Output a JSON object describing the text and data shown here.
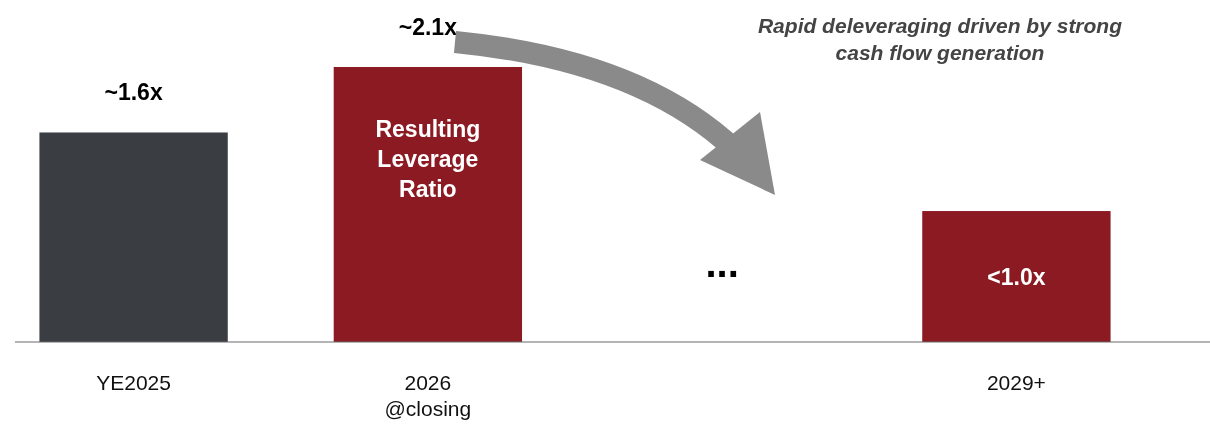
{
  "chart_data": {
    "type": "bar",
    "categories": [
      "YE2025",
      "2026 @closing",
      null,
      "2029+"
    ],
    "values": [
      1.6,
      2.1,
      null,
      1.0
    ],
    "colors": [
      "#3a3d42",
      "#8b1a22",
      null,
      "#8b1a22"
    ],
    "value_labels": [
      "~1.6x",
      "~2.1x",
      null,
      "<1.0x"
    ],
    "annotations": [
      "Rapid deleveraging driven by strong cash flow generation",
      "Resulting Leverage Ratio",
      "..."
    ],
    "grid": false
  }
}
